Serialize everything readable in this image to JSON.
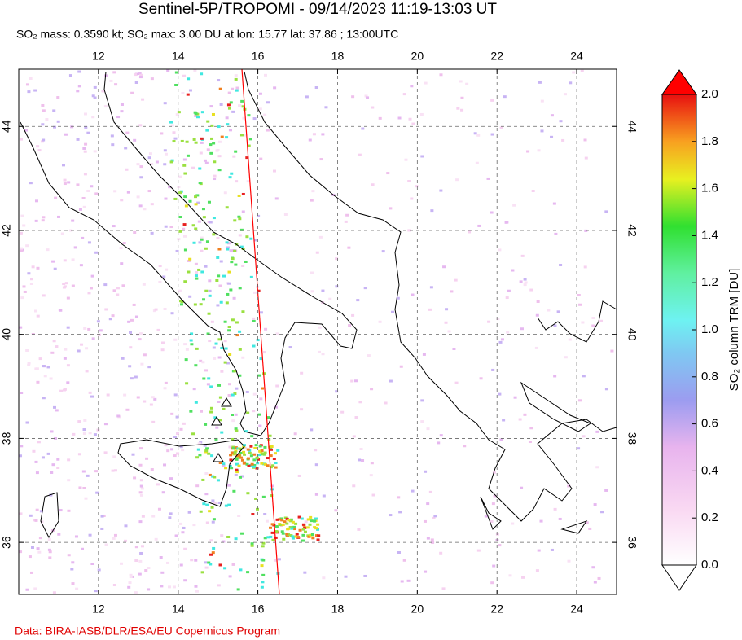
{
  "title": "Sentinel-5P/TROPOMI - 09/14/2023 11:19-13:03 UT",
  "subtitle": "SO₂ mass: 0.3590 kt; SO₂ max: 3.00 DU at lon: 15.77 lat: 37.86 ; 13:00UTC",
  "map": {
    "lonlim": [
      10,
      25
    ],
    "latlim": [
      35,
      45.1
    ],
    "lon_ticks": [
      12,
      14,
      16,
      18,
      20,
      22,
      24
    ],
    "lat_ticks": [
      36,
      38,
      40,
      42,
      44
    ]
  },
  "colorbar": {
    "label": "SO₂ column TRM [DU]",
    "lim": [
      0,
      2
    ],
    "ticks": [
      {
        "value": 0,
        "label": "0.0"
      },
      0.2,
      0.4,
      0.6,
      0.8,
      {
        "value": 1,
        "label": "1.0"
      },
      1.2,
      1.4,
      1.6,
      1.8,
      {
        "value": 2,
        "label": "2.0"
      }
    ]
  },
  "credit": "Data: BIRA-IASB/DLR/ESA/EU Copernicus Program"
}
